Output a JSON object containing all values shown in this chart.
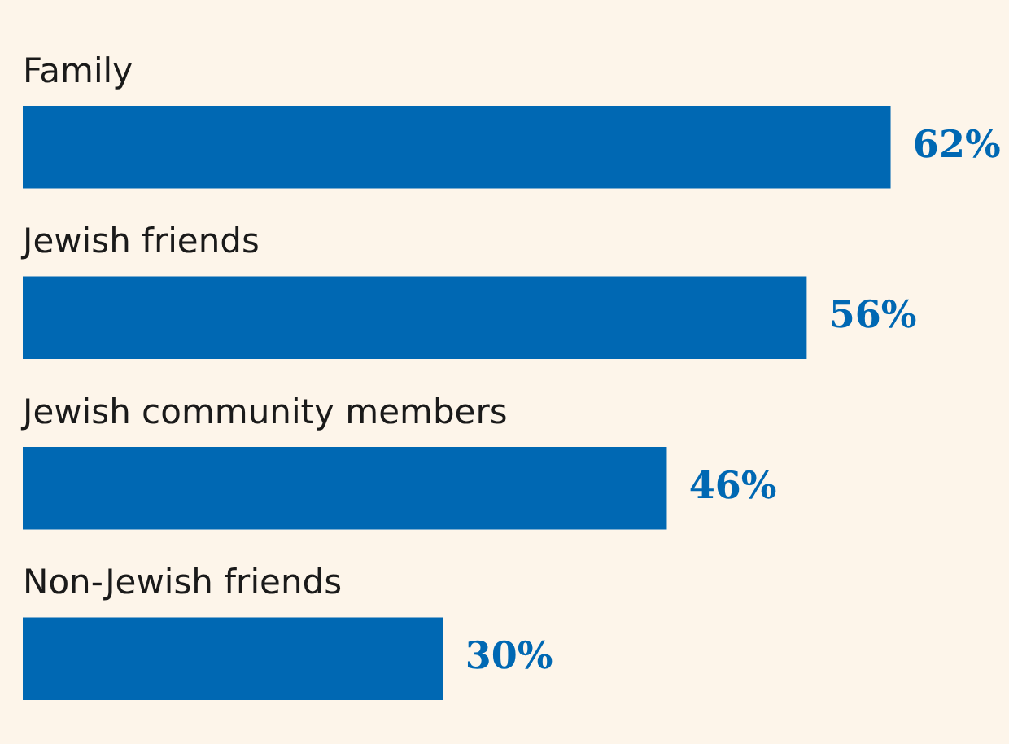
{
  "chart_data": {
    "type": "bar",
    "orientation": "horizontal",
    "categories": [
      "Family",
      "Jewish friends",
      "Jewish community members",
      "Non-Jewish friends"
    ],
    "values": [
      62,
      56,
      46,
      30
    ],
    "color": "#0068b3",
    "xlim": [
      0,
      70.5
    ],
    "value_labels": [
      "62%",
      "56%",
      "46%",
      "30%"
    ]
  }
}
